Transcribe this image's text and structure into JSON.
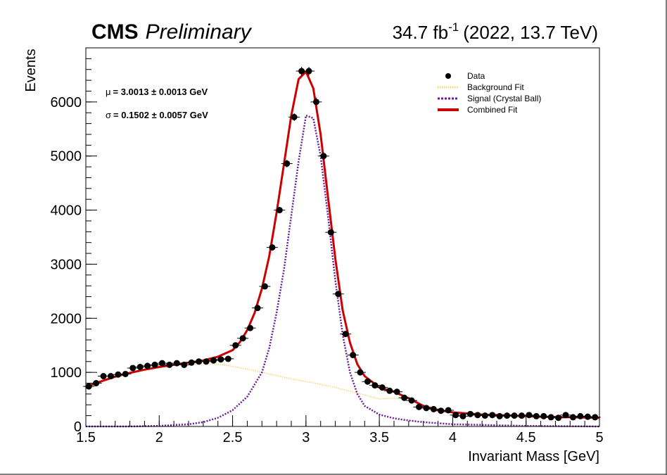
{
  "header": {
    "experiment": "CMS",
    "status": "Preliminary",
    "lumi_value": "34.7 fb",
    "lumi_exp": "-1",
    "lumi_suffix": "(2022, 13.7 TeV)"
  },
  "annotations": {
    "mu_symbol": "μ",
    "mu_text": "= 3.0013 ± 0.0013 GeV",
    "sigma_symbol": "σ",
    "sigma_text": "= 0.1502 ± 0.0057 GeV"
  },
  "colors": {
    "data": "#000000",
    "background_fit": "#f5d76e",
    "signal": "#6a1b9a",
    "combined": "#cc0000"
  },
  "chart_data": {
    "type": "scatter",
    "xlabel": "Invariant Mass [GeV]",
    "ylabel": "Events",
    "xlim": [
      1.5,
      5.0
    ],
    "ylim": [
      0,
      7000
    ],
    "xticks": [
      1.5,
      2,
      2.5,
      3,
      3.5,
      4,
      4.5,
      5
    ],
    "xtick_labels": [
      "1.5",
      "2",
      "2.5",
      "3",
      "3.5",
      "4",
      "4.5",
      "5"
    ],
    "yticks": [
      0,
      1000,
      2000,
      3000,
      4000,
      5000,
      6000
    ],
    "ytick_labels": [
      "0",
      "1000",
      "2000",
      "3000",
      "4000",
      "5000",
      "6000"
    ],
    "grid": false,
    "legend_position": "top-right",
    "legend": [
      {
        "label": "Data",
        "style": "marker"
      },
      {
        "label": "Background Fit",
        "style": "dotted-thin"
      },
      {
        "label": "Signal (Crystal Ball)",
        "style": "dotted-thick"
      },
      {
        "label": "Combined Fit",
        "style": "solid"
      }
    ],
    "series": [
      {
        "name": "Data",
        "x": [
          1.52,
          1.57,
          1.62,
          1.67,
          1.72,
          1.77,
          1.82,
          1.87,
          1.92,
          1.97,
          2.02,
          2.07,
          2.12,
          2.17,
          2.22,
          2.27,
          2.32,
          2.37,
          2.42,
          2.47,
          2.52,
          2.57,
          2.62,
          2.67,
          2.72,
          2.77,
          2.82,
          2.87,
          2.92,
          2.97,
          3.02,
          3.07,
          3.12,
          3.17,
          3.22,
          3.27,
          3.32,
          3.37,
          3.42,
          3.47,
          3.52,
          3.57,
          3.62,
          3.67,
          3.72,
          3.77,
          3.82,
          3.87,
          3.92,
          3.97,
          4.02,
          4.07,
          4.12,
          4.17,
          4.22,
          4.27,
          4.32,
          4.37,
          4.42,
          4.47,
          4.52,
          4.57,
          4.62,
          4.67,
          4.72,
          4.77,
          4.82,
          4.87,
          4.92,
          4.97
        ],
        "y": [
          740,
          800,
          930,
          930,
          960,
          970,
          1080,
          1100,
          1120,
          1140,
          1170,
          1140,
          1170,
          1140,
          1180,
          1200,
          1200,
          1220,
          1240,
          1250,
          1500,
          1630,
          1820,
          2190,
          2590,
          3310,
          4000,
          4860,
          5720,
          6570,
          6570,
          6000,
          5000,
          3590,
          2450,
          1710,
          1320,
          1000,
          830,
          760,
          720,
          660,
          640,
          530,
          480,
          360,
          340,
          320,
          290,
          300,
          210,
          190,
          230,
          210,
          200,
          210,
          190,
          200,
          200,
          200,
          210,
          190,
          190,
          170,
          160,
          210,
          170,
          190,
          180,
          170
        ],
        "yerr": [
          30,
          30,
          30,
          30,
          30,
          30,
          30,
          30,
          30,
          30,
          30,
          30,
          30,
          30,
          30,
          30,
          30,
          30,
          30,
          30,
          40,
          40,
          40,
          50,
          50,
          60,
          60,
          70,
          70,
          80,
          80,
          80,
          70,
          60,
          50,
          40,
          40,
          30,
          30,
          30,
          30,
          30,
          30,
          20,
          20,
          20,
          20,
          20,
          20,
          20,
          15,
          15,
          15,
          15,
          15,
          15,
          15,
          15,
          15,
          15,
          15,
          15,
          15,
          15,
          15,
          15,
          15,
          15,
          15,
          15
        ]
      },
      {
        "name": "Background Fit",
        "x": [
          1.5,
          1.6,
          1.7,
          1.8,
          1.9,
          2.0,
          2.1,
          2.2,
          2.3,
          2.4,
          2.5,
          2.6,
          2.7,
          2.8,
          2.9,
          3.0,
          3.1,
          3.2,
          3.3,
          3.4,
          3.5,
          3.6,
          3.7,
          3.8,
          3.9,
          4.0,
          4.2,
          4.4,
          4.6,
          4.8,
          5.0
        ],
        "y": [
          720,
          820,
          910,
          980,
          1040,
          1090,
          1130,
          1150,
          1160,
          1150,
          1110,
          1060,
          1000,
          940,
          880,
          830,
          780,
          720,
          650,
          580,
          510,
          520,
          510,
          400,
          320,
          260,
          220,
          200,
          180,
          170,
          160
        ]
      },
      {
        "name": "Signal (Crystal Ball)",
        "x": [
          1.5,
          1.8,
          2.0,
          2.2,
          2.3,
          2.4,
          2.5,
          2.6,
          2.7,
          2.75,
          2.8,
          2.85,
          2.9,
          2.95,
          3.0,
          3.05,
          3.1,
          3.15,
          3.2,
          3.25,
          3.3,
          3.35,
          3.4,
          3.5,
          3.6,
          3.7,
          3.8,
          4.0,
          4.5,
          5.0
        ],
        "y": [
          0,
          0,
          10,
          40,
          80,
          160,
          300,
          550,
          1000,
          1450,
          2100,
          2900,
          3900,
          4900,
          5750,
          5700,
          5000,
          3900,
          2700,
          1700,
          1000,
          600,
          380,
          220,
          150,
          110,
          80,
          40,
          10,
          0
        ]
      },
      {
        "name": "Combined Fit",
        "x": [
          1.5,
          1.6,
          1.7,
          1.8,
          1.9,
          2.0,
          2.1,
          2.2,
          2.3,
          2.4,
          2.5,
          2.55,
          2.6,
          2.65,
          2.7,
          2.75,
          2.8,
          2.85,
          2.9,
          2.95,
          3.0,
          3.05,
          3.1,
          3.15,
          3.2,
          3.25,
          3.3,
          3.35,
          3.4,
          3.5,
          3.6,
          3.7,
          3.8,
          3.9,
          4.0,
          4.2,
          4.4,
          4.6,
          4.8,
          5.0
        ],
        "y": [
          730,
          830,
          920,
          990,
          1050,
          1100,
          1140,
          1180,
          1220,
          1290,
          1410,
          1560,
          1780,
          2100,
          2550,
          3150,
          3950,
          4850,
          5750,
          6420,
          6560,
          6250,
          5400,
          4250,
          3100,
          2150,
          1550,
          1150,
          930,
          720,
          640,
          520,
          380,
          300,
          260,
          220,
          200,
          180,
          170,
          160
        ]
      }
    ]
  }
}
